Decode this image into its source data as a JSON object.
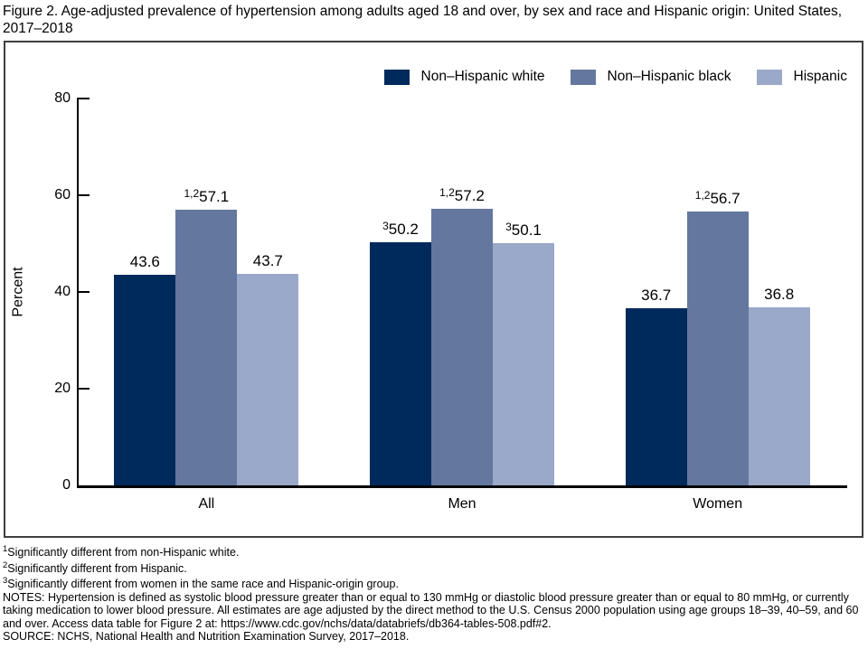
{
  "title": "Figure 2. Age-adjusted prevalence of hypertension among adults aged 18 and over, by sex and race and Hispanic origin: United States, 2017–2018",
  "chart_data": {
    "type": "bar",
    "title": "Figure 2. Age-adjusted prevalence of hypertension among adults aged 18 and over, by sex and race and Hispanic origin: United States, 2017–2018",
    "categories": [
      "All",
      "Men",
      "Women"
    ],
    "series": [
      {
        "name": "Non–Hispanic white",
        "color": "#002a5c",
        "values": [
          43.6,
          50.2,
          36.7
        ],
        "label_sups": [
          "",
          "3",
          ""
        ]
      },
      {
        "name": "Non–Hispanic black",
        "color": "#64779e",
        "values": [
          57.1,
          57.2,
          56.7
        ],
        "label_sups": [
          "1,2",
          "1,2",
          "1,2"
        ]
      },
      {
        "name": "Hispanic",
        "color": "#9aa8c9",
        "values": [
          43.7,
          50.1,
          36.8
        ],
        "label_sups": [
          "",
          "3",
          ""
        ]
      }
    ],
    "xlabel": "",
    "ylabel": "Percent",
    "ylim": [
      0,
      80
    ],
    "yticks": [
      0,
      20,
      40,
      60,
      80
    ],
    "grid": false,
    "legend_position": "top-right",
    "bar_value_labels": true,
    "axis_color": "#000000",
    "frame_color": "#3f3f3f"
  },
  "footnotes": [
    {
      "sup": "1",
      "text": "Significantly different from non-Hispanic white."
    },
    {
      "sup": "2",
      "text": "Significantly different from Hispanic."
    },
    {
      "sup": "3",
      "text": "Significantly different from women in the same race and Hispanic-origin group."
    }
  ],
  "notes": "NOTES: Hypertension is defined as systolic blood pressure greater than or equal to 130 mmHg or diastolic blood pressure greater than or equal to 80 mmHg, or currently taking medication to lower blood pressure. All estimates are age adjusted by the direct method to the U.S. Census 2000 population using age groups 18–39, 40–59, and 60 and over. Access data table for Figure 2 at: https://www.cdc.gov/nchs/data/databriefs/db364-tables-508.pdf#2.",
  "source": "SOURCE: NCHS, National Health and Nutrition Examination Survey, 2017–2018."
}
